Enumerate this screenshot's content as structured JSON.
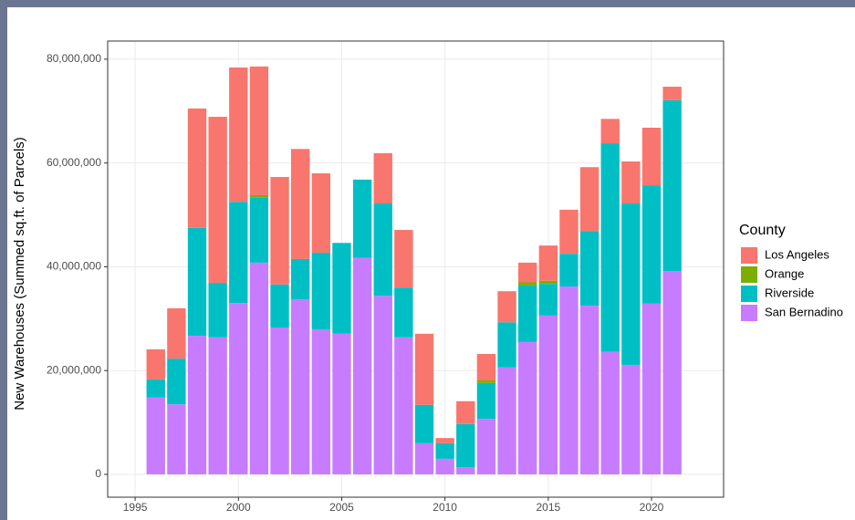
{
  "chart_data": {
    "type": "stacked_bar",
    "y_label": "New Warehouses (Summed sq.ft. of Parcels)",
    "legend_title": "County",
    "legend": "right",
    "grid": true,
    "x": [
      1996,
      1997,
      1998,
      1999,
      2000,
      2001,
      2002,
      2003,
      2004,
      2005,
      2006,
      2007,
      2008,
      2009,
      2010,
      2011,
      2012,
      2013,
      2014,
      2015,
      2016,
      2017,
      2018,
      2019,
      2020,
      2021
    ],
    "series": [
      {
        "name": "Los Angeles",
        "color": "#f8766d",
        "values": [
          5800000,
          9700000,
          23000000,
          32000000,
          25900000,
          24800000,
          20700000,
          21200000,
          15300000,
          0,
          0,
          9700000,
          11100000,
          13700000,
          1000000,
          4400000,
          5100000,
          6000000,
          3800000,
          6800000,
          8500000,
          12300000,
          4700000,
          8100000,
          11100000,
          2600000
        ]
      },
      {
        "name": "Orange",
        "color": "#7cae00",
        "values": [
          0,
          0,
          0,
          0,
          0,
          500000,
          0,
          0,
          0,
          0,
          0,
          0,
          0,
          0,
          0,
          0,
          500000,
          0,
          600000,
          600000,
          0,
          0,
          0,
          0,
          0,
          0
        ]
      },
      {
        "name": "Riverside",
        "color": "#00bfc4",
        "values": [
          3500000,
          8800000,
          20800000,
          10500000,
          19500000,
          12500000,
          8300000,
          7800000,
          14800000,
          17500000,
          15100000,
          17800000,
          9600000,
          7400000,
          3000000,
          8300000,
          6900000,
          8700000,
          10900000,
          6100000,
          6300000,
          14400000,
          40200000,
          31100000,
          22800000,
          32900000
        ]
      },
      {
        "name": "San Bernadino",
        "color": "#c77cff",
        "values": [
          14800000,
          13500000,
          26700000,
          26400000,
          33000000,
          40800000,
          28300000,
          33700000,
          27900000,
          27100000,
          41700000,
          34400000,
          26400000,
          6000000,
          3000000,
          1400000,
          10700000,
          20600000,
          25500000,
          30600000,
          36200000,
          32500000,
          23600000,
          21100000,
          32900000,
          39200000
        ]
      }
    ],
    "xlim": [
      1993.67,
      2023.49
    ],
    "xticks": [
      1995,
      2000,
      2005,
      2010,
      2015,
      2020
    ],
    "ylim": [
      -4400000,
      83500000
    ],
    "yticks": [
      {
        "value": 0,
        "label": "0"
      },
      {
        "value": 20000000,
        "label": "20,000,000"
      },
      {
        "value": 40000000,
        "label": "40,000,000"
      },
      {
        "value": 60000000,
        "label": "60,000,000"
      },
      {
        "value": 80000000,
        "label": "80,000,000"
      }
    ]
  }
}
